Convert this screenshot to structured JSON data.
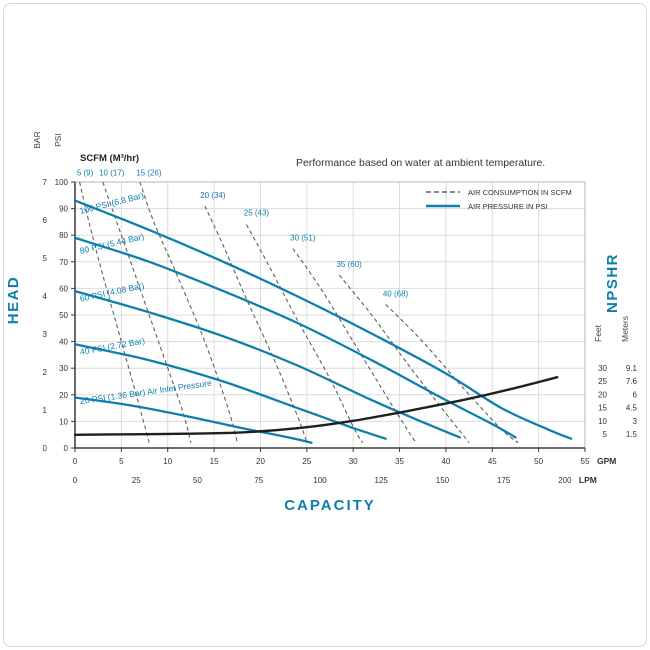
{
  "colors": {
    "blue": "#0e7fad",
    "dashed": "#5f5f5f",
    "npshr": "#1f1f1f",
    "grid": "#dcdcdc",
    "axis": "#3a3a3a",
    "text": "#333333",
    "border": "#b5b5b5"
  },
  "chart_data": {
    "type": "line",
    "title": "Performance based on water at ambient temperature.",
    "scfm_header": "SCFM (M³/hr)",
    "legend": [
      {
        "style": "dashed",
        "label": "AIR CONSUMPTION IN SCFM"
      },
      {
        "style": "solid",
        "label": "AIR PRESSURE IN PSI"
      }
    ],
    "axes": {
      "x": {
        "title": "CAPACITY",
        "gpm_unit": "GPM",
        "gpm_ticks": [
          0,
          5,
          10,
          15,
          20,
          25,
          30,
          35,
          40,
          45,
          50,
          55
        ],
        "gpm_max": 55,
        "lpm_unit": "LPM",
        "lpm_ticks": [
          0,
          25,
          50,
          75,
          100,
          125,
          150,
          175,
          200
        ]
      },
      "left": {
        "title": "HEAD",
        "psi_unit": "PSI",
        "psi_ticks": [
          0,
          10,
          20,
          30,
          40,
          50,
          60,
          70,
          80,
          90,
          100
        ],
        "bar_unit": "BAR",
        "bar_ticks": [
          0,
          1,
          2,
          3,
          4,
          5,
          6,
          7
        ]
      },
      "right": {
        "title": "NPSHR",
        "feet_unit": "Feet",
        "feet_ticks": [
          30,
          25,
          20,
          15,
          10,
          5
        ],
        "meters_unit": "Meters",
        "meters_ticks": [
          "9.1",
          "7.6",
          "6",
          "4.5",
          "3",
          "1.5"
        ]
      }
    },
    "pressure_curves": [
      {
        "id": "psi-100",
        "label": "100 PSI (6.8 Bar)",
        "label_pos": [
          0.6,
          88
        ],
        "label_angle": -14,
        "points": [
          [
            0,
            93
          ],
          [
            8,
            82
          ],
          [
            16,
            70
          ],
          [
            24,
            57
          ],
          [
            32,
            43
          ],
          [
            40,
            28
          ],
          [
            46,
            15
          ],
          [
            51,
            7
          ],
          [
            53.5,
            3.5
          ]
        ]
      },
      {
        "id": "psi-80",
        "label": "80 PSI (5.44 Bar)",
        "label_pos": [
          0.6,
          73
        ],
        "label_angle": -13,
        "points": [
          [
            0,
            79
          ],
          [
            8,
            70
          ],
          [
            16,
            59
          ],
          [
            24,
            47
          ],
          [
            32,
            33
          ],
          [
            40,
            18
          ],
          [
            45,
            9
          ],
          [
            47.5,
            4
          ]
        ]
      },
      {
        "id": "psi-60",
        "label": "60 PSI (4.08 Bar)",
        "label_pos": [
          0.6,
          55
        ],
        "label_angle": -12,
        "points": [
          [
            0,
            59
          ],
          [
            8,
            51
          ],
          [
            16,
            42
          ],
          [
            24,
            31
          ],
          [
            32,
            18
          ],
          [
            38,
            9
          ],
          [
            41.5,
            4
          ]
        ]
      },
      {
        "id": "psi-40",
        "label": "40 PSI (2.72 Bar)",
        "label_pos": [
          0.6,
          35
        ],
        "label_angle": -10,
        "points": [
          [
            0,
            39
          ],
          [
            8,
            33
          ],
          [
            16,
            25
          ],
          [
            24,
            15
          ],
          [
            30,
            7.5
          ],
          [
            33.5,
            3.5
          ]
        ]
      },
      {
        "id": "psi-20",
        "label": "20 PSI (1.36 Bar)  Air Inlet Pressure",
        "label_pos": [
          0.6,
          16.5
        ],
        "label_angle": -8,
        "points": [
          [
            0,
            19
          ],
          [
            6,
            16
          ],
          [
            12,
            12
          ],
          [
            18,
            7.5
          ],
          [
            23,
            4
          ],
          [
            25.5,
            2
          ]
        ]
      }
    ],
    "consumption_curves": [
      {
        "id": "scfm-5",
        "label": "5 (9)",
        "label_pos": [
          0.2,
          102.5
        ],
        "points": [
          [
            0.5,
            100
          ],
          [
            1.5,
            85
          ],
          [
            3,
            65
          ],
          [
            5,
            40
          ],
          [
            7,
            15
          ],
          [
            8,
            2
          ]
        ]
      },
      {
        "id": "scfm-10",
        "label": "10 (17)",
        "label_pos": [
          2.6,
          102.5
        ],
        "points": [
          [
            3,
            100
          ],
          [
            4.5,
            85
          ],
          [
            6.5,
            65
          ],
          [
            9,
            40
          ],
          [
            11.5,
            15
          ],
          [
            12.5,
            2
          ]
        ]
      },
      {
        "id": "scfm-15",
        "label": "15 (26)",
        "label_pos": [
          6.6,
          102.5
        ],
        "points": [
          [
            7,
            100
          ],
          [
            8.5,
            85
          ],
          [
            11,
            65
          ],
          [
            14,
            40
          ],
          [
            16.5,
            15
          ],
          [
            17.5,
            2
          ]
        ]
      },
      {
        "id": "scfm-20",
        "label": "20 (34)",
        "label_pos": [
          13.5,
          94
        ],
        "points": [
          [
            14,
            91
          ],
          [
            16,
            76
          ],
          [
            18.5,
            56
          ],
          [
            21.5,
            33
          ],
          [
            24,
            12
          ],
          [
            25,
            2
          ]
        ]
      },
      {
        "id": "scfm-25",
        "label": "25 (43)",
        "label_pos": [
          18.2,
          87.5
        ],
        "points": [
          [
            18.5,
            84
          ],
          [
            21,
            68
          ],
          [
            24,
            48
          ],
          [
            27.5,
            26
          ],
          [
            30,
            8
          ],
          [
            31,
            2
          ]
        ]
      },
      {
        "id": "scfm-30",
        "label": "30 (51)",
        "label_pos": [
          23.2,
          78
        ],
        "points": [
          [
            23.5,
            75
          ],
          [
            26.5,
            60
          ],
          [
            30,
            40
          ],
          [
            33.5,
            20
          ],
          [
            36,
            6
          ],
          [
            36.8,
            2
          ]
        ]
      },
      {
        "id": "scfm-35",
        "label": "35 (60)",
        "label_pos": [
          28.2,
          68
        ],
        "points": [
          [
            28.5,
            65
          ],
          [
            32,
            50
          ],
          [
            36,
            31
          ],
          [
            40,
            13
          ],
          [
            42.5,
            2
          ]
        ]
      },
      {
        "id": "scfm-40",
        "label": "40 (68)",
        "label_pos": [
          33.2,
          57
        ],
        "points": [
          [
            33.5,
            54
          ],
          [
            37.5,
            40
          ],
          [
            42,
            22
          ],
          [
            46,
            7
          ],
          [
            47.8,
            2
          ]
        ]
      }
    ],
    "npshr_curve": {
      "points_gpm_feet": [
        [
          0,
          4.7
        ],
        [
          6,
          4.9
        ],
        [
          12,
          5.1
        ],
        [
          18,
          5.6
        ],
        [
          24,
          7.2
        ],
        [
          30,
          10
        ],
        [
          36,
          13.8
        ],
        [
          42,
          18
        ],
        [
          47,
          22
        ],
        [
          52,
          26.5
        ]
      ]
    }
  }
}
